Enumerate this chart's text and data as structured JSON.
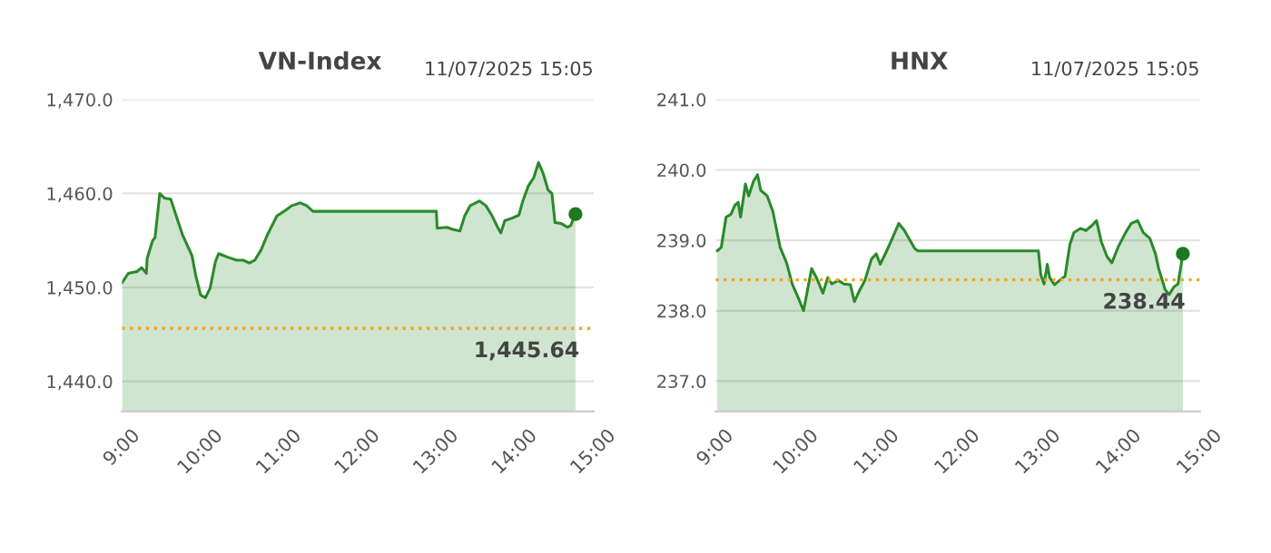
{
  "chart_data": [
    {
      "type": "area",
      "title": "VN-Index",
      "annotations": [
        "11/07/2025 15:05"
      ],
      "grid": "y",
      "xlim": [
        9,
        15
      ],
      "xticks": [
        {
          "value": 9,
          "label": "9:00"
        },
        {
          "value": 10,
          "label": "10:00"
        },
        {
          "value": 11,
          "label": "11:00"
        },
        {
          "value": 12,
          "label": "12:00"
        },
        {
          "value": 13,
          "label": "13:00"
        },
        {
          "value": 14,
          "label": "14:00"
        },
        {
          "value": 15,
          "label": "15:00"
        }
      ],
      "ylim": [
        1436.8,
        1470
      ],
      "yticks": [
        {
          "value": 1440,
          "label": "1,440.0"
        },
        {
          "value": 1450,
          "label": "1,450.0"
        },
        {
          "value": 1460,
          "label": "1,460.0"
        },
        {
          "value": 1470,
          "label": "1,470.0"
        }
      ],
      "ref_lines": [
        {
          "axis": "y",
          "value": 1445.64,
          "label": "1,445.64",
          "color": "#f5a623",
          "line_style": "dotted"
        }
      ],
      "series": [
        {
          "color": "#2a8a2a",
          "x": [
            9.0,
            9.08,
            9.19,
            9.25,
            9.31,
            9.32,
            9.39,
            9.42,
            9.45,
            9.48,
            9.54,
            9.62,
            9.69,
            9.77,
            9.89,
            9.94,
            10.0,
            10.06,
            10.12,
            10.19,
            10.23,
            10.35,
            10.46,
            10.54,
            10.62,
            10.69,
            10.77,
            10.85,
            10.97,
            11.08,
            11.16,
            11.27,
            11.35,
            11.43,
            11.47,
            13.0,
            13.01,
            13.13,
            13.2,
            13.3,
            13.36,
            13.43,
            13.55,
            13.63,
            13.71,
            13.78,
            13.82,
            13.87,
            13.97,
            14.05,
            14.1,
            14.17,
            14.24,
            14.3,
            14.36,
            14.42,
            14.47,
            14.51,
            14.59,
            14.67,
            14.71,
            14.77
          ],
          "values": [
            1450.5,
            1451.5,
            1451.7,
            1452.1,
            1451.5,
            1453.1,
            1455.0,
            1455.3,
            1457.6,
            1460.0,
            1459.5,
            1459.4,
            1457.6,
            1455.6,
            1453.4,
            1451.2,
            1449.2,
            1448.9,
            1449.9,
            1452.8,
            1453.6,
            1453.2,
            1452.9,
            1452.9,
            1452.6,
            1452.9,
            1454.0,
            1455.6,
            1457.6,
            1458.2,
            1458.7,
            1459.0,
            1458.7,
            1458.1,
            1458.1,
            1458.1,
            1456.3,
            1456.4,
            1456.2,
            1456.0,
            1457.6,
            1458.7,
            1459.2,
            1458.7,
            1457.6,
            1456.4,
            1455.8,
            1457.1,
            1457.4,
            1457.7,
            1459.2,
            1460.8,
            1461.7,
            1463.3,
            1462.1,
            1460.4,
            1460.0,
            1456.9,
            1456.8,
            1456.4,
            1456.6,
            1457.8
          ]
        },
        {
          "type": "scatter",
          "color": "#1e7a1e",
          "x": [
            14.77
          ],
          "values": [
            1457.8
          ]
        }
      ]
    },
    {
      "type": "area",
      "title": "HNX",
      "annotations": [
        "11/07/2025 15:05"
      ],
      "grid": "y",
      "xlim": [
        9,
        15
      ],
      "xticks": [
        {
          "value": 9,
          "label": "9:00"
        },
        {
          "value": 10,
          "label": "10:00"
        },
        {
          "value": 11,
          "label": "11:00"
        },
        {
          "value": 12,
          "label": "12:00"
        },
        {
          "value": 13,
          "label": "13:00"
        },
        {
          "value": 14,
          "label": "14:00"
        },
        {
          "value": 15,
          "label": "15:00"
        }
      ],
      "ylim": [
        236.57,
        241
      ],
      "yticks": [
        {
          "value": 237,
          "label": "237.0"
        },
        {
          "value": 238,
          "label": "238.0"
        },
        {
          "value": 239,
          "label": "239.0"
        },
        {
          "value": 240,
          "label": "240.0"
        },
        {
          "value": 241,
          "label": "241.0"
        }
      ],
      "ref_lines": [
        {
          "axis": "y",
          "value": 238.44,
          "label": "238.44",
          "color": "#f5a623",
          "line_style": "dotted"
        }
      ],
      "series": [
        {
          "color": "#2a8a2a",
          "x": [
            9.02,
            9.07,
            9.13,
            9.19,
            9.24,
            9.28,
            9.31,
            9.37,
            9.41,
            9.47,
            9.52,
            9.56,
            9.64,
            9.71,
            9.74,
            9.8,
            9.88,
            9.95,
            10.03,
            10.09,
            10.14,
            10.19,
            10.25,
            10.33,
            10.39,
            10.44,
            10.52,
            10.59,
            10.67,
            10.72,
            10.78,
            10.85,
            10.93,
            10.99,
            11.04,
            11.12,
            11.19,
            11.27,
            11.34,
            11.42,
            11.47,
            11.51,
            13.0,
            13.03,
            13.07,
            13.11,
            13.14,
            13.2,
            13.26,
            13.33,
            13.39,
            13.44,
            13.52,
            13.59,
            13.67,
            13.72,
            13.78,
            13.85,
            13.91,
            13.99,
            14.08,
            14.15,
            14.23,
            14.3,
            14.38,
            14.45,
            14.49,
            14.57,
            14.62,
            14.68,
            14.73,
            14.79
          ],
          "values": [
            238.85,
            238.9,
            239.33,
            239.37,
            239.5,
            239.54,
            239.33,
            239.8,
            239.63,
            239.84,
            239.93,
            239.71,
            239.63,
            239.41,
            239.24,
            238.9,
            238.68,
            238.38,
            238.17,
            238.0,
            238.3,
            238.6,
            238.47,
            238.25,
            238.47,
            238.38,
            238.43,
            238.38,
            238.37,
            238.13,
            238.28,
            238.43,
            238.73,
            238.81,
            238.66,
            238.85,
            239.03,
            239.24,
            239.14,
            238.98,
            238.88,
            238.85,
            238.85,
            238.51,
            238.38,
            238.66,
            238.47,
            238.37,
            238.43,
            238.49,
            238.94,
            239.11,
            239.17,
            239.14,
            239.22,
            239.28,
            238.98,
            238.77,
            238.68,
            238.91,
            239.11,
            239.24,
            239.28,
            239.11,
            239.03,
            238.81,
            238.6,
            238.3,
            238.23,
            238.34,
            238.38,
            238.81
          ]
        },
        {
          "type": "scatter",
          "color": "#1e7a1e",
          "x": [
            14.79
          ],
          "values": [
            238.81
          ]
        }
      ]
    }
  ]
}
